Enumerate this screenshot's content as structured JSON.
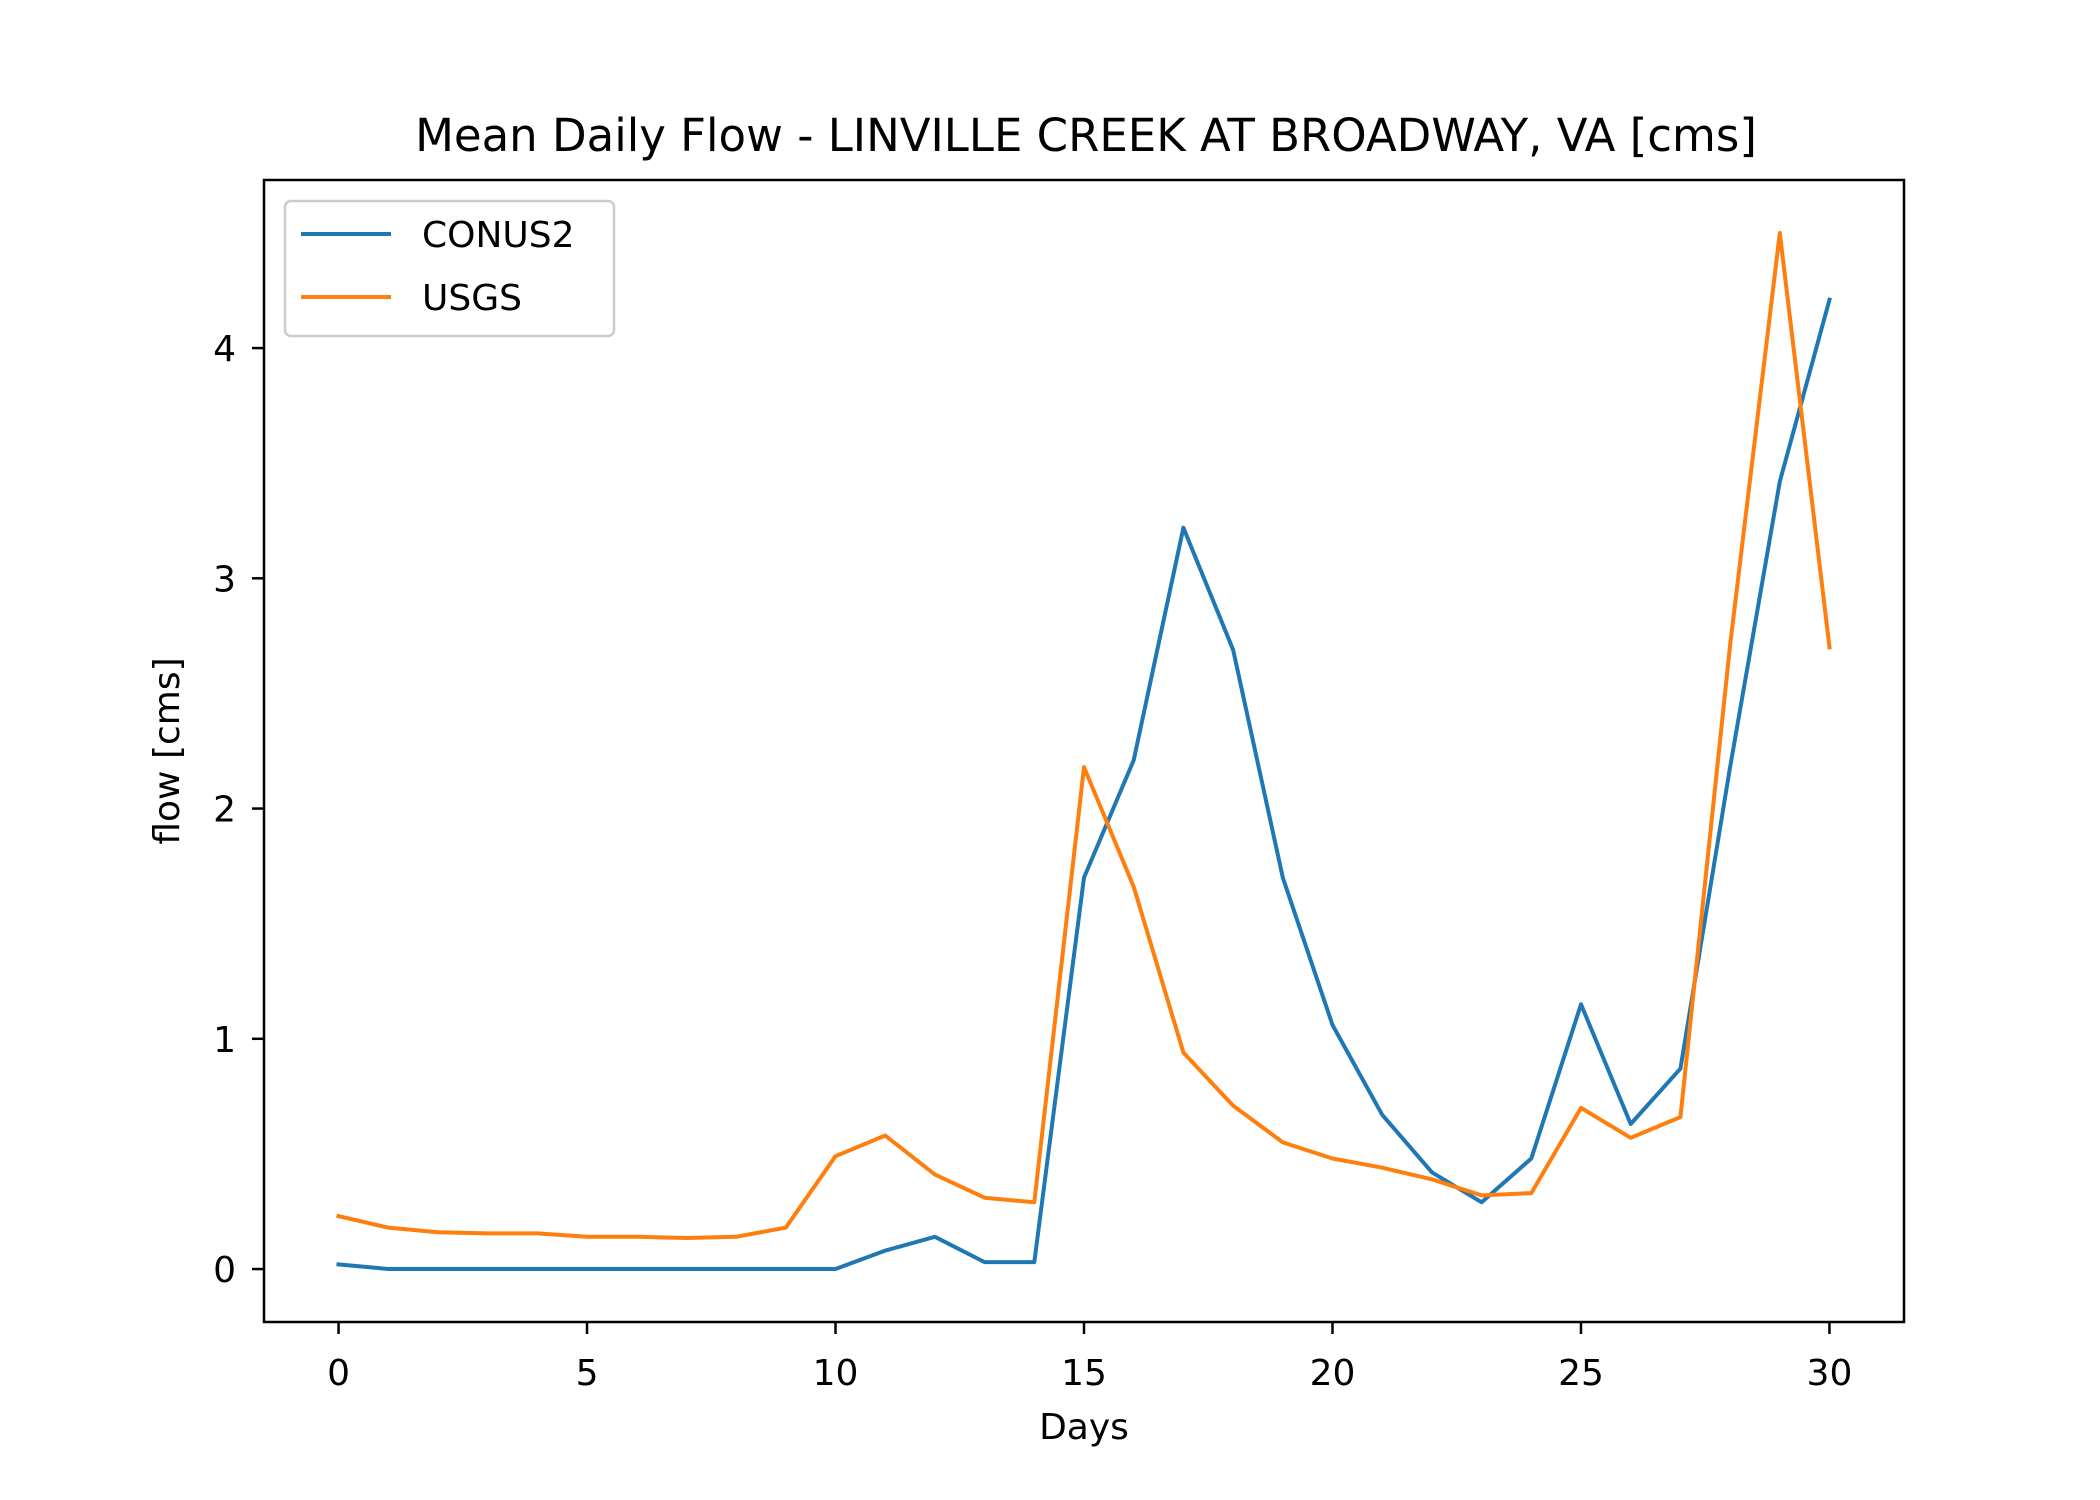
{
  "chart_data": {
    "type": "line",
    "title": "Mean Daily Flow - LINVILLE CREEK AT BROADWAY, VA [cms]",
    "xlabel": "Days",
    "ylabel": "flow [cms]",
    "xlim": [
      -1.5,
      31.5
    ],
    "ylim": [
      -0.23,
      4.73
    ],
    "xticks": [
      0,
      5,
      10,
      15,
      20,
      25,
      30
    ],
    "yticks": [
      0,
      1,
      2,
      3,
      4
    ],
    "grid": false,
    "legend_position": "top-left",
    "x": [
      0,
      1,
      2,
      3,
      4,
      5,
      6,
      7,
      8,
      9,
      10,
      11,
      12,
      13,
      14,
      15,
      16,
      17,
      18,
      19,
      20,
      21,
      22,
      23,
      24,
      25,
      26,
      27,
      28,
      29,
      30
    ],
    "series": [
      {
        "name": "CONUS2",
        "color": "#1f77b4",
        "values": [
          0.02,
          0.0,
          0.0,
          0.0,
          0.0,
          0.0,
          0.0,
          0.0,
          0.0,
          0.0,
          0.0,
          0.08,
          0.14,
          0.03,
          0.03,
          1.7,
          2.21,
          3.22,
          2.69,
          1.7,
          1.06,
          0.67,
          0.42,
          0.29,
          0.48,
          1.15,
          0.63,
          0.87,
          2.18,
          3.42,
          4.21
        ]
      },
      {
        "name": "USGS",
        "color": "#ff7f0e",
        "values": [
          0.23,
          0.18,
          0.16,
          0.155,
          0.155,
          0.14,
          0.14,
          0.135,
          0.14,
          0.18,
          0.49,
          0.58,
          0.41,
          0.31,
          0.29,
          2.18,
          1.66,
          0.94,
          0.71,
          0.55,
          0.48,
          0.44,
          0.39,
          0.32,
          0.33,
          0.7,
          0.57,
          0.66,
          2.71,
          4.5,
          2.7
        ]
      }
    ]
  }
}
